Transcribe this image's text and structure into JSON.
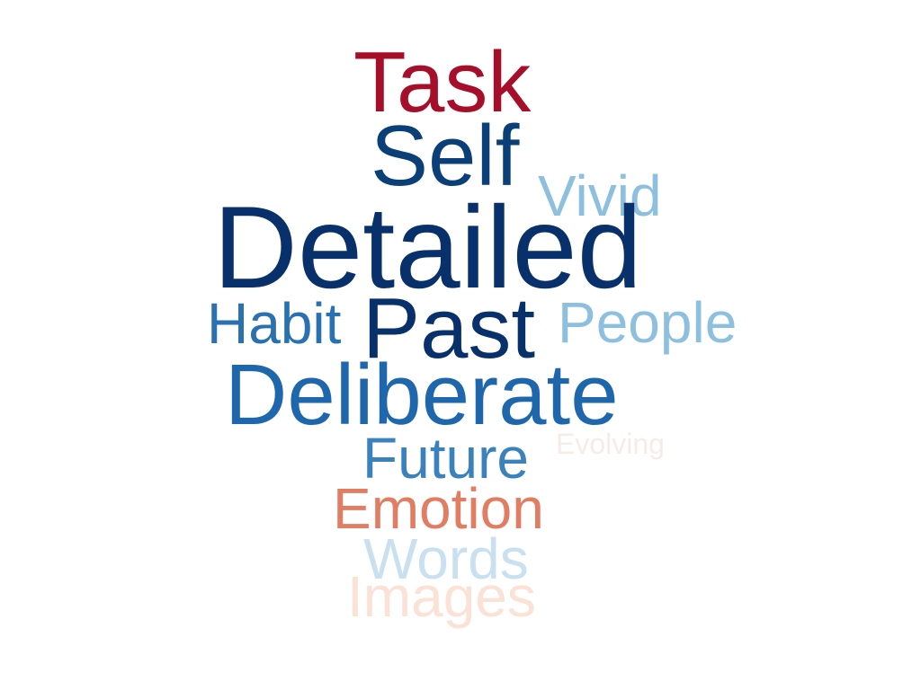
{
  "word_cloud": {
    "words": [
      {
        "id": "task",
        "text": "Task",
        "color": "#a50f2a"
      },
      {
        "id": "self",
        "text": "Self",
        "color": "#0b3f78"
      },
      {
        "id": "vivid",
        "text": "Vivid",
        "color": "#8dc0de"
      },
      {
        "id": "detailed",
        "text": "Detailed",
        "color": "#08306b"
      },
      {
        "id": "habit",
        "text": "Habit",
        "color": "#2a71b2"
      },
      {
        "id": "past",
        "text": "Past",
        "color": "#08306b"
      },
      {
        "id": "people",
        "text": "People",
        "color": "#8dc0de"
      },
      {
        "id": "deliberate",
        "text": "Deliberate",
        "color": "#1f67ad"
      },
      {
        "id": "evolving",
        "text": "Evolving",
        "color": "#f5ece8"
      },
      {
        "id": "future",
        "text": "Future",
        "color": "#3b82bd"
      },
      {
        "id": "emotion",
        "text": "Emotion",
        "color": "#e07d62"
      },
      {
        "id": "words",
        "text": "Words",
        "color": "#c8e0ef"
      },
      {
        "id": "images",
        "text": "Images",
        "color": "#fbe2d6"
      }
    ]
  }
}
